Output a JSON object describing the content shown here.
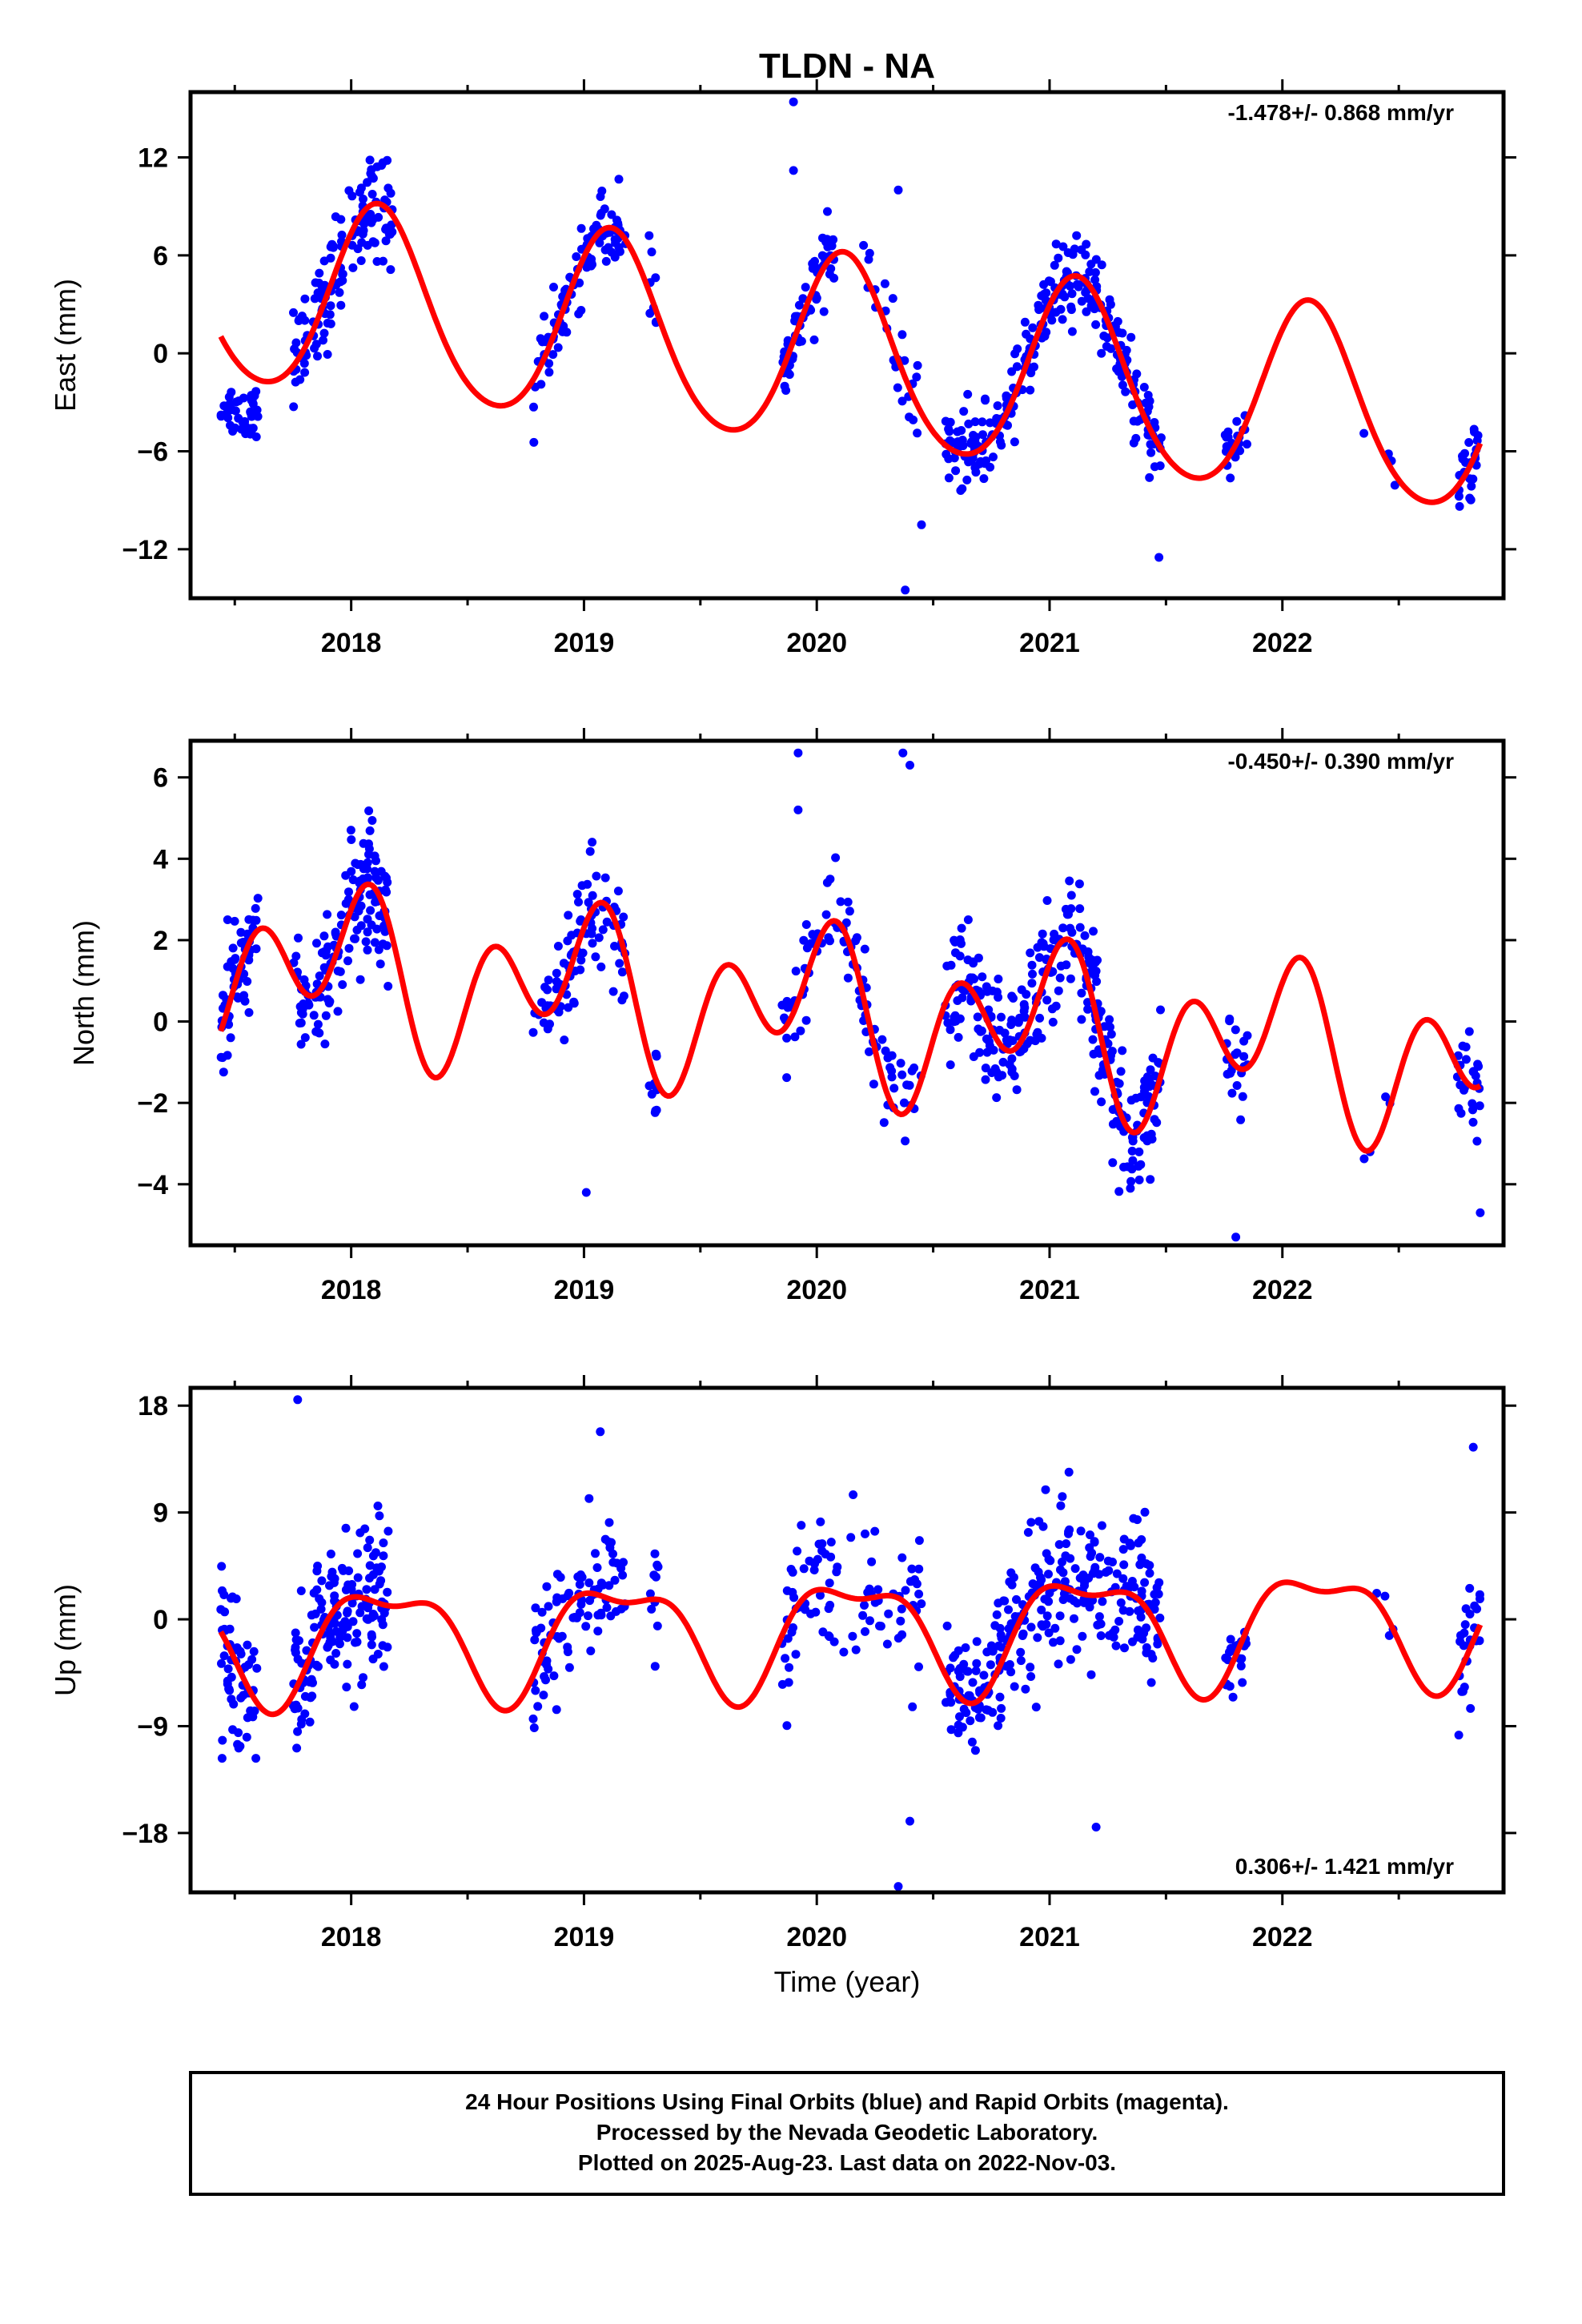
{
  "title": "TLDN - NA",
  "xlabel": "Time (year)",
  "footer": {
    "line1": "24 Hour Positions Using Final Orbits (blue) and Rapid Orbits (magenta).",
    "line2": "Processed by the Nevada Geodetic Laboratory.",
    "line3": "Plotted on 2025-Aug-23. Last data on 2022-Nov-03."
  },
  "colors": {
    "data_points": "#0000ff",
    "model_fit": "#ff0000",
    "frame": "#000000"
  },
  "chart_data": [
    {
      "type": "scatter",
      "component": "east",
      "ylabel": "East (mm)",
      "rate_label": "-1.478+/- 0.868 mm/yr",
      "xlim": [
        2017.31,
        2022.95
      ],
      "ylim": [
        -15,
        16
      ],
      "xticks": [
        2018,
        2019,
        2020,
        2021,
        2022
      ],
      "yticks": [
        12,
        6,
        0,
        -6,
        -12
      ],
      "ytick_labels": [
        "12",
        "6",
        "0",
        "−6",
        "−12"
      ],
      "fit_params": {
        "offset": 0.0,
        "trend": -1.478,
        "amp1": 5.8,
        "phase1": 0.82,
        "amp2": 0.6,
        "phase2": 0.3,
        "ref": 2020.0
      },
      "segments": [
        {
          "x0": 2017.44,
          "x1": 2017.6,
          "n": 40,
          "center": -3.5,
          "spread": 1.3
        },
        {
          "x0": 2017.75,
          "x1": 2018.18,
          "n": 130,
          "center": null,
          "spread": 2.2
        },
        {
          "x0": 2018.78,
          "x1": 2019.18,
          "n": 90,
          "center": null,
          "spread": 1.6
        },
        {
          "x0": 2019.28,
          "x1": 2019.32,
          "n": 8,
          "center": null,
          "spread": 1.8
        },
        {
          "x0": 2019.85,
          "x1": 2020.08,
          "n": 60,
          "center": null,
          "spread": 1.6
        },
        {
          "x0": 2020.2,
          "x1": 2020.45,
          "n": 25,
          "center": null,
          "spread": 2.4
        },
        {
          "x0": 2020.55,
          "x1": 2021.48,
          "n": 280,
          "center": null,
          "spread": 1.7
        },
        {
          "x0": 2021.75,
          "x1": 2021.85,
          "n": 20,
          "center": null,
          "spread": 1.4
        },
        {
          "x0": 2022.35,
          "x1": 2022.5,
          "n": 4,
          "center": null,
          "spread": 1.2
        },
        {
          "x0": 2022.75,
          "x1": 2022.85,
          "n": 25,
          "center": null,
          "spread": 1.5
        }
      ],
      "outliers": [
        [
          2019.9,
          15.4
        ],
        [
          2019.9,
          11.2
        ],
        [
          2020.35,
          10.0
        ],
        [
          2020.38,
          -14.5
        ],
        [
          2020.45,
          -10.5
        ],
        [
          2021.47,
          -12.5
        ]
      ]
    },
    {
      "type": "scatter",
      "component": "north",
      "ylabel": "North (mm)",
      "rate_label": "-0.450+/- 0.390 mm/yr",
      "xlim": [
        2017.31,
        2022.95
      ],
      "ylim": [
        -5.5,
        6.9
      ],
      "xticks": [
        2018,
        2019,
        2020,
        2021,
        2022
      ],
      "yticks": [
        6,
        4,
        2,
        0,
        -2,
        -4
      ],
      "ytick_labels": [
        "6",
        "4",
        "2",
        "0",
        "−2",
        "−4"
      ],
      "fit_params": {
        "offset": 0.3,
        "trend": -0.45,
        "amp1": 1.1,
        "phase1": 1.9,
        "amp2": 1.5,
        "phase2": 0.35,
        "ref": 2020.0
      },
      "segments": [
        {
          "x0": 2017.44,
          "x1": 2017.6,
          "n": 60,
          "center": null,
          "spread": 1.0
        },
        {
          "x0": 2017.75,
          "x1": 2018.16,
          "n": 150,
          "center": null,
          "spread": 1.1
        },
        {
          "x0": 2018.78,
          "x1": 2019.18,
          "n": 90,
          "center": null,
          "spread": 1.0
        },
        {
          "x0": 2019.28,
          "x1": 2019.32,
          "n": 10,
          "center": null,
          "spread": 0.9
        },
        {
          "x0": 2019.85,
          "x1": 2020.45,
          "n": 90,
          "center": null,
          "spread": 1.0
        },
        {
          "x0": 2020.55,
          "x1": 2021.48,
          "n": 290,
          "center": null,
          "spread": 1.1
        },
        {
          "x0": 2021.75,
          "x1": 2021.85,
          "n": 22,
          "center": null,
          "spread": 0.8
        },
        {
          "x0": 2022.35,
          "x1": 2022.5,
          "n": 4,
          "center": null,
          "spread": 0.6
        },
        {
          "x0": 2022.75,
          "x1": 2022.85,
          "n": 25,
          "center": null,
          "spread": 0.9
        }
      ],
      "outliers": [
        [
          2019.92,
          6.6
        ],
        [
          2019.92,
          5.2
        ],
        [
          2020.37,
          6.6
        ],
        [
          2020.4,
          6.3
        ],
        [
          2021.8,
          -5.3
        ],
        [
          2022.85,
          -4.7
        ],
        [
          2019.01,
          -4.2
        ]
      ]
    },
    {
      "type": "scatter",
      "component": "up",
      "ylabel": "Up (mm)",
      "rate_label": "0.306+/- 1.421 mm/yr",
      "xlim": [
        2017.31,
        2022.95
      ],
      "ylim": [
        -23,
        19.5
      ],
      "xticks": [
        2018,
        2019,
        2020,
        2021,
        2022
      ],
      "yticks": [
        18,
        9,
        0,
        -9,
        -18
      ],
      "ytick_labels": [
        "18",
        "9",
        "0",
        "−9",
        "−18"
      ],
      "fit_params": {
        "offset": -1.0,
        "trend": 0.306,
        "amp1": 4.5,
        "phase1": 0.6,
        "amp2": 1.8,
        "phase2": 2.6,
        "ref": 2020.0
      },
      "segments": [
        {
          "x0": 2017.44,
          "x1": 2017.6,
          "n": 60,
          "center": null,
          "spread": 4.5
        },
        {
          "x0": 2017.75,
          "x1": 2018.16,
          "n": 160,
          "center": null,
          "spread": 4.5
        },
        {
          "x0": 2018.78,
          "x1": 2019.18,
          "n": 90,
          "center": null,
          "spread": 4.2
        },
        {
          "x0": 2019.28,
          "x1": 2019.32,
          "n": 10,
          "center": null,
          "spread": 4.0
        },
        {
          "x0": 2019.85,
          "x1": 2020.45,
          "n": 90,
          "center": null,
          "spread": 5.0
        },
        {
          "x0": 2020.55,
          "x1": 2021.48,
          "n": 290,
          "center": null,
          "spread": 4.5
        },
        {
          "x0": 2021.75,
          "x1": 2021.85,
          "n": 22,
          "center": null,
          "spread": 3.0
        },
        {
          "x0": 2022.35,
          "x1": 2022.5,
          "n": 4,
          "center": null,
          "spread": 2.5
        },
        {
          "x0": 2022.75,
          "x1": 2022.85,
          "n": 25,
          "center": null,
          "spread": 4.0
        }
      ],
      "outliers": [
        [
          2017.77,
          18.5
        ],
        [
          2020.35,
          -22.5
        ],
        [
          2019.07,
          15.8
        ],
        [
          2021.2,
          -17.5
        ],
        [
          2020.4,
          -17.0
        ],
        [
          2022.82,
          14.5
        ]
      ]
    }
  ]
}
